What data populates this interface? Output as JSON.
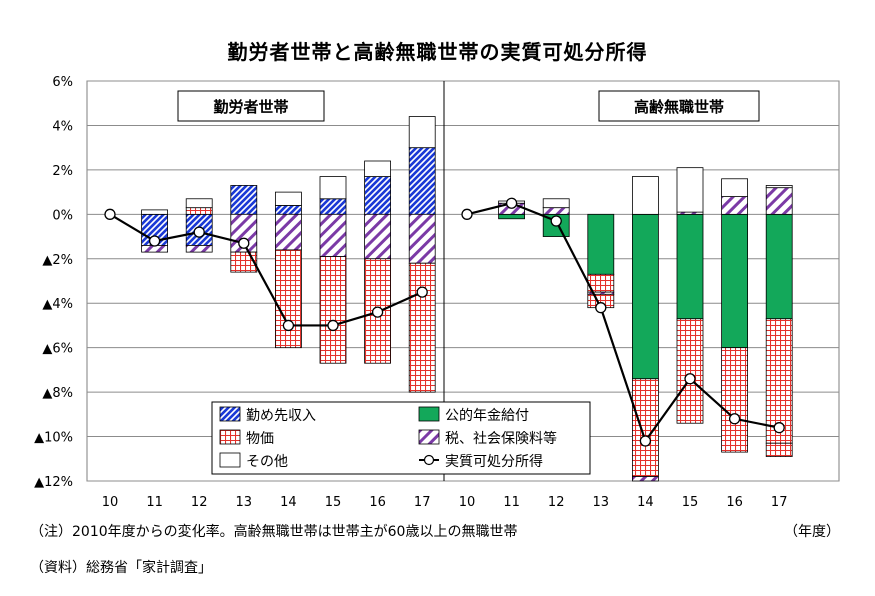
{
  "title": "勤労者世帯と高齢無職世帯の実質可処分所得",
  "note": "（注）2010年度からの変化率。高齢無職世帯は世帯主が60歳以上の無職世帯",
  "source": "（資料）総務省「家計調査」",
  "x_unit": "（年度）",
  "colors": {
    "kinmu": "#1a39d6",
    "nenkin": "#13a85a",
    "bukka": "#e4312b",
    "zei": "#7b3aa6",
    "sonota": "#ffffff",
    "line": "#000000"
  },
  "chart_data": {
    "type": "bar",
    "stacked": true,
    "y_ticks": [
      {
        "value": 6,
        "label": "6%"
      },
      {
        "value": 4,
        "label": "4%"
      },
      {
        "value": 2,
        "label": "2%"
      },
      {
        "value": 0,
        "label": "0%"
      },
      {
        "value": -2,
        "label": "▲2%"
      },
      {
        "value": -4,
        "label": "▲4%"
      },
      {
        "value": -6,
        "label": "▲6%"
      },
      {
        "value": -8,
        "label": "▲8%"
      },
      {
        "value": -10,
        "label": "▲10%"
      },
      {
        "value": -12,
        "label": "▲12%"
      }
    ],
    "ylim": [
      -12,
      6
    ],
    "grid": true,
    "legend": {
      "placement": "bottom-left",
      "items": [
        {
          "key": "kinmu",
          "label": "勤め先収入"
        },
        {
          "key": "nenkin",
          "label": "公的年金給付"
        },
        {
          "key": "bukka",
          "label": "物価"
        },
        {
          "key": "zei",
          "label": "税、社会保険料等"
        },
        {
          "key": "sonota",
          "label": "その他"
        },
        {
          "key": "line",
          "label": "実質可処分所得"
        }
      ]
    },
    "panels": [
      {
        "name": "勤労者世帯",
        "categories": [
          "10",
          "11",
          "12",
          "13",
          "14",
          "15",
          "16",
          "17"
        ],
        "series": [
          {
            "key": "kinmu",
            "values": [
              0,
              -1.4,
              -1.4,
              1.3,
              0.4,
              0.7,
              1.7,
              3.0
            ]
          },
          {
            "key": "zei",
            "values": [
              0,
              -0.3,
              -0.3,
              -1.7,
              -1.6,
              -1.9,
              -2.0,
              -2.2
            ]
          },
          {
            "key": "bukka",
            "values": [
              0,
              0,
              0.3,
              -0.9,
              -4.4,
              -4.8,
              -4.7,
              -5.8
            ]
          },
          {
            "key": "sonota",
            "values": [
              0,
              0.2,
              0.4,
              0,
              0.6,
              1.0,
              0.7,
              1.4
            ]
          }
        ],
        "line": [
          0,
          -1.2,
          -0.8,
          -1.3,
          -5.0,
          -5.0,
          -4.4,
          -3.5
        ]
      },
      {
        "name": "高齢無職世帯",
        "categories": [
          "10",
          "11",
          "12",
          "13",
          "14",
          "15",
          "16",
          "17"
        ],
        "series": [
          {
            "key": "nenkin",
            "values": [
              0,
              -0.2,
              -1.0,
              -2.7,
              -7.4,
              -4.7,
              -6.0,
              -4.7
            ]
          },
          {
            "key": "bukka",
            "values": [
              0,
              0,
              0,
              -0.8,
              -4.4,
              -4.7,
              -4.7,
              -5.6
            ]
          },
          {
            "key": "zei",
            "values": [
              0,
              0.5,
              0.3,
              -0.1,
              -0.2,
              0.1,
              0.8,
              1.2
            ]
          },
          {
            "key": "sonota",
            "values": [
              0,
              0.1,
              0.4,
              0,
              1.7,
              2.0,
              0.8,
              0.1
            ]
          },
          {
            "key": "bukka_neg",
            "values": [
              0,
              0,
              0,
              -0.6,
              0,
              0,
              0,
              -0.6
            ]
          }
        ],
        "line": [
          0,
          0.5,
          -0.3,
          -4.2,
          -10.2,
          -7.4,
          -9.2,
          -9.6
        ]
      }
    ]
  }
}
